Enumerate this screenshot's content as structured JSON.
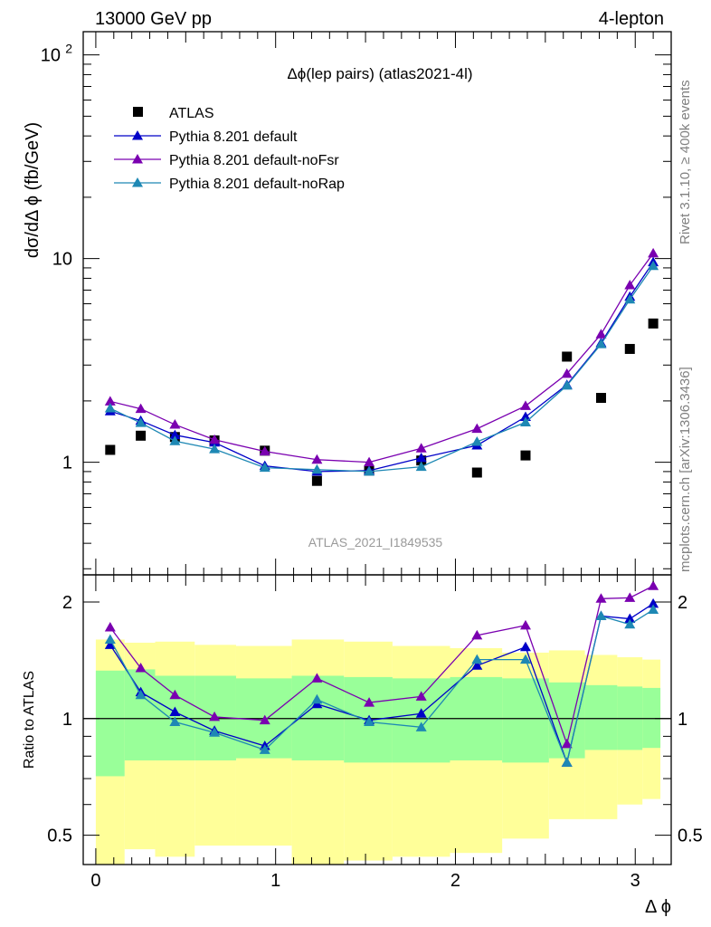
{
  "header": {
    "left": "13000 GeV pp",
    "right": "4-lepton"
  },
  "side_labels": {
    "top": "Rivet 3.1.10, ≥ 400k events",
    "bottom": "mcplots.cern.ch [arXiv:1306.3436]"
  },
  "colors": {
    "data": "#000000",
    "default": "#0000c8",
    "noFsr": "#7a00b0",
    "noRap": "#1e88b4",
    "band_inner": "#99ff99",
    "band_outer": "#ffff99"
  },
  "chart_data": [
    {
      "type": "scatter",
      "title": "Δϕ(lep pairs) (atlas2021-4l)",
      "ylabel": "dσ/dΔ ϕ (fb/GeV)",
      "yscale": "log",
      "ylim": [
        0.28,
        130
      ],
      "xlim": [
        -0.07,
        3.2
      ],
      "y_ticks": [
        {
          "v": 1,
          "label": "1"
        },
        {
          "v": 10,
          "label": "10"
        },
        {
          "v": 100,
          "label": "10",
          "sup": "2"
        }
      ],
      "watermark": "ATLAS_2021_I1849535",
      "legend_position": "top-left",
      "x": [
        0.08,
        0.25,
        0.44,
        0.66,
        0.94,
        1.23,
        1.52,
        1.81,
        2.12,
        2.39,
        2.62,
        2.81,
        2.97,
        3.1
      ],
      "series": [
        {
          "name": "ATLAS",
          "marker": "square",
          "values": [
            1.15,
            1.35,
            1.33,
            1.28,
            1.14,
            0.81,
            0.91,
            1.02,
            0.89,
            1.08,
            3.3,
            2.07,
            3.6,
            4.8
          ]
        },
        {
          "name": "Pythia 8.201 default",
          "marker": "triangle",
          "values": [
            1.78,
            1.6,
            1.36,
            1.25,
            0.96,
            0.9,
            0.91,
            1.05,
            1.21,
            1.67,
            2.4,
            3.85,
            6.5,
            9.6
          ]
        },
        {
          "name": "Pythia 8.201 default-noFsr",
          "marker": "triangle",
          "values": [
            1.99,
            1.83,
            1.53,
            1.29,
            1.13,
            1.03,
            1.0,
            1.17,
            1.46,
            1.89,
            2.72,
            4.25,
            7.4,
            10.6
          ]
        },
        {
          "name": "Pythia 8.201 default-noRap",
          "marker": "triangle",
          "values": [
            1.84,
            1.56,
            1.27,
            1.16,
            0.94,
            0.92,
            0.9,
            0.95,
            1.26,
            1.57,
            2.38,
            3.8,
            6.3,
            9.2
          ]
        }
      ]
    },
    {
      "type": "line",
      "ylabel": "Ratio to ATLAS",
      "xlabel": "Δ ϕ",
      "yscale": "log",
      "ylim": [
        0.42,
        2.35
      ],
      "xlim": [
        -0.07,
        3.2
      ],
      "y_ticks": [
        {
          "v": 0.5,
          "label": "0.5"
        },
        {
          "v": 1,
          "label": "1"
        },
        {
          "v": 2,
          "label": "2"
        }
      ],
      "x_ticks": [
        0,
        1,
        2,
        3
      ],
      "x": [
        0.08,
        0.25,
        0.44,
        0.66,
        0.94,
        1.23,
        1.52,
        1.81,
        2.12,
        2.39,
        2.62,
        2.81,
        2.97,
        3.1
      ],
      "bin_edges": [
        0,
        0.16,
        0.33,
        0.55,
        0.78,
        1.09,
        1.38,
        1.65,
        1.97,
        2.26,
        2.52,
        2.72,
        2.9,
        3.04,
        3.14
      ],
      "band_inner": {
        "low": [
          0.71,
          0.78,
          0.78,
          0.78,
          0.79,
          0.78,
          0.77,
          0.77,
          0.78,
          0.77,
          0.79,
          0.83,
          0.83,
          0.84
        ],
        "high": [
          1.33,
          1.34,
          1.29,
          1.29,
          1.27,
          1.29,
          1.28,
          1.27,
          1.28,
          1.27,
          1.24,
          1.22,
          1.21,
          1.2
        ]
      },
      "band_outer": {
        "low": [
          0.3,
          0.46,
          0.44,
          0.47,
          0.47,
          0.36,
          0.43,
          0.44,
          0.45,
          0.49,
          0.55,
          0.55,
          0.6,
          0.62
        ]
      },
      "band_outer_high": [
        1.6,
        1.57,
        1.58,
        1.55,
        1.54,
        1.6,
        1.58,
        1.54,
        1.52,
        1.48,
        1.5,
        1.46,
        1.44,
        1.42
      ],
      "series": [
        {
          "name": "Pythia 8.201 default",
          "values": [
            1.55,
            1.17,
            1.04,
            0.93,
            0.85,
            1.09,
            0.99,
            1.03,
            1.37,
            1.53,
            0.77,
            1.84,
            1.81,
            1.98
          ]
        },
        {
          "name": "Pythia 8.201 default-noFsr",
          "values": [
            1.72,
            1.35,
            1.15,
            1.01,
            0.99,
            1.27,
            1.1,
            1.14,
            1.64,
            1.74,
            0.86,
            2.04,
            2.05,
            2.2
          ]
        },
        {
          "name": "Pythia 8.201 default-noRap",
          "values": [
            1.6,
            1.15,
            0.98,
            0.92,
            0.83,
            1.12,
            0.98,
            0.95,
            1.42,
            1.42,
            0.77,
            1.84,
            1.75,
            1.91
          ]
        }
      ]
    }
  ]
}
